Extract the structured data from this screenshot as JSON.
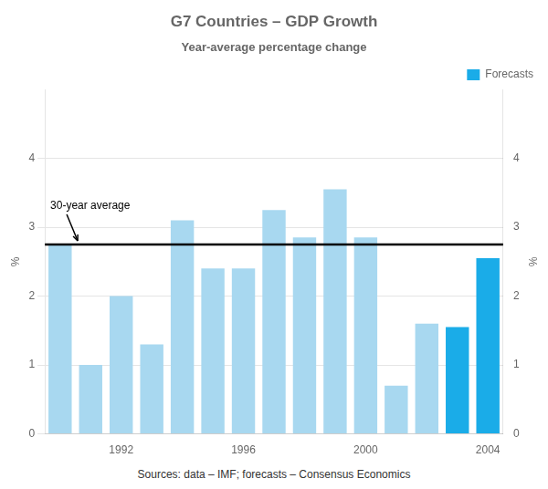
{
  "chart_data": {
    "type": "bar",
    "title": "G7 Countries – GDP Growth",
    "subtitle": "Year-average percentage change",
    "categories": [
      null,
      null,
      "1992",
      null,
      null,
      null,
      "1996",
      null,
      null,
      null,
      "2000",
      null,
      null,
      null,
      "2004"
    ],
    "series": [
      {
        "values": [
          2.75,
          1.0,
          2.0,
          1.3,
          3.1,
          2.4,
          2.4,
          3.25,
          2.85,
          3.55,
          2.85,
          0.7,
          1.6,
          null,
          null
        ],
        "color": "#a8d8f0"
      },
      {
        "name": "Forecasts",
        "values": [
          null,
          null,
          null,
          null,
          null,
          null,
          null,
          null,
          null,
          null,
          null,
          null,
          null,
          1.55,
          2.55
        ],
        "color": "#1aace8"
      }
    ],
    "ylabel": "%",
    "y2label": "%",
    "ylim": [
      0,
      5
    ],
    "yticks": [
      0,
      1,
      2,
      3,
      4
    ],
    "y2lim": [
      0,
      5
    ],
    "y2ticks": [
      0,
      1,
      2,
      3,
      4
    ],
    "grid": true,
    "legend": "upper right",
    "annotations": [
      {
        "text": "30-year average",
        "y": 2.75
      }
    ],
    "source": "Sources: data – IMF; forecasts – Consensus Economics"
  }
}
